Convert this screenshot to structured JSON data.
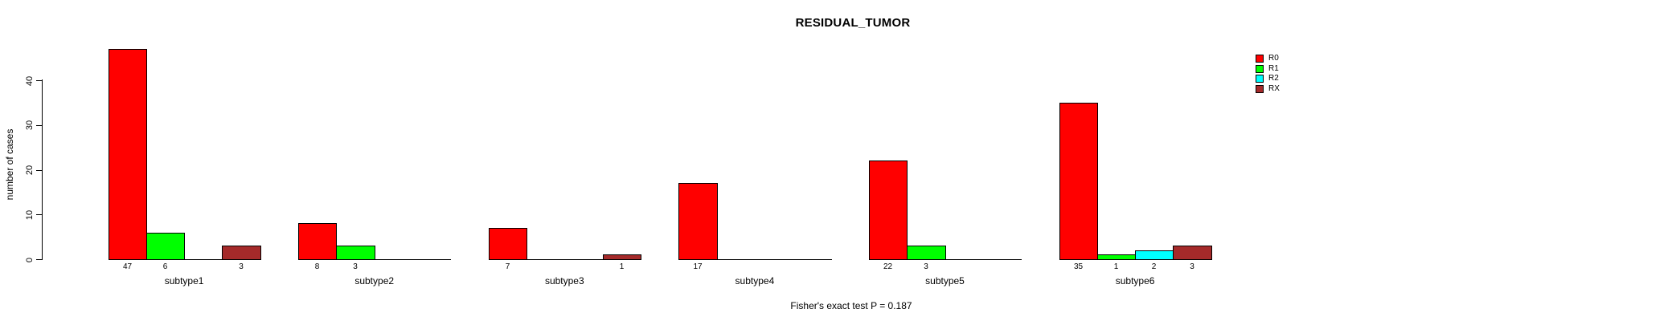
{
  "title": "RESIDUAL_TUMOR",
  "footer": "Fisher's exact test P = 0.187",
  "chart_data": {
    "type": "bar",
    "title": "RESIDUAL_TUMOR",
    "xlabel": "",
    "ylabel": "number of cases",
    "ylim": [
      0,
      47
    ],
    "yticks": [
      0,
      10,
      20,
      30,
      40
    ],
    "grid": false,
    "legend_position": "right",
    "bar_value_labels": "shown under non-zero bars",
    "annotation": "Fisher's exact test P = 0.187",
    "categories": [
      "subtype1",
      "subtype2",
      "subtype3",
      "subtype4",
      "subtype5",
      "subtype6"
    ],
    "series": [
      {
        "name": "R0",
        "color": "#FF0000",
        "values": [
          47,
          8,
          7,
          17,
          22,
          35
        ]
      },
      {
        "name": "R1",
        "color": "#00FF00",
        "values": [
          6,
          3,
          0,
          0,
          3,
          1
        ]
      },
      {
        "name": "R2",
        "color": "#00FFFF",
        "values": [
          0,
          0,
          0,
          0,
          0,
          2
        ]
      },
      {
        "name": "RX",
        "color": "#A52A2A",
        "values": [
          3,
          0,
          1,
          0,
          0,
          3
        ]
      }
    ]
  },
  "legend": {
    "items": [
      {
        "label": "R0",
        "color": "#FF0000"
      },
      {
        "label": "R1",
        "color": "#00FF00"
      },
      {
        "label": "R2",
        "color": "#00FFFF"
      },
      {
        "label": "RX",
        "color": "#A52A2A"
      }
    ]
  },
  "colors": {
    "axis": "#000000",
    "background": "#FFFFFF"
  }
}
